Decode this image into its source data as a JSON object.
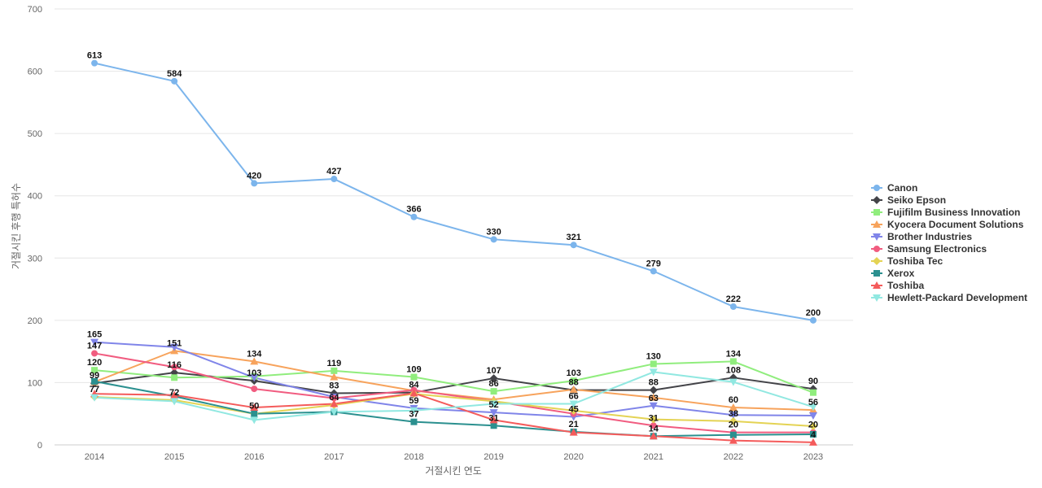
{
  "chart_data": {
    "type": "line",
    "title": "",
    "xlabel": "거절시킨 연도",
    "ylabel": "거절시킨 후행 특허수",
    "ylim": [
      0,
      700
    ],
    "yticks": [
      0,
      100,
      200,
      300,
      400,
      500,
      600,
      700
    ],
    "grid": true,
    "legend_position": "right",
    "categories": [
      "2014",
      "2015",
      "2016",
      "2017",
      "2018",
      "2019",
      "2020",
      "2021",
      "2022",
      "2023"
    ],
    "series": [
      {
        "name": "Canon",
        "color": "#7cb5ec",
        "marker": "circle",
        "values": [
          613,
          584,
          420,
          427,
          366,
          330,
          321,
          279,
          222,
          200
        ],
        "labeled": true
      },
      {
        "name": "Seiko Epson",
        "color": "#434348",
        "marker": "diamond",
        "values": [
          99,
          116,
          103,
          83,
          84,
          107,
          88,
          88,
          108,
          90
        ],
        "labeled": true
      },
      {
        "name": "Fujifilm Business Innovation",
        "color": "#90ed7d",
        "marker": "square",
        "values": [
          120,
          108,
          110,
          119,
          109,
          86,
          103,
          130,
          134,
          84
        ],
        "labeled": true
      },
      {
        "name": "Kyocera Document Solutions",
        "color": "#f7a35c",
        "marker": "triangle",
        "values": [
          101,
          151,
          134,
          109,
          87,
          73,
          89,
          76,
          60,
          56
        ],
        "labeled": true
      },
      {
        "name": "Brother Industries",
        "color": "#8085e9",
        "marker": "triangle-down",
        "values": [
          165,
          157,
          108,
          77,
          59,
          52,
          45,
          63,
          48,
          47
        ],
        "labeled": true
      },
      {
        "name": "Samsung Electronics",
        "color": "#f15c80",
        "marker": "circle",
        "values": [
          147,
          125,
          90,
          75,
          88,
          70,
          50,
          31,
          20,
          20
        ],
        "labeled": true
      },
      {
        "name": "Toshiba Tec",
        "color": "#e4d354",
        "marker": "diamond",
        "values": [
          77,
          72,
          50,
          64,
          82,
          70,
          55,
          41,
          38,
          30
        ],
        "labeled": false
      },
      {
        "name": "Xerox",
        "color": "#2b908f",
        "marker": "square",
        "values": [
          102,
          78,
          50,
          53,
          37,
          31,
          21,
          14,
          16,
          17
        ],
        "labeled": false
      },
      {
        "name": "Toshiba",
        "color": "#f45b5b",
        "marker": "triangle",
        "values": [
          82,
          80,
          60,
          66,
          83,
          40,
          20,
          14,
          7,
          4
        ],
        "labeled": false
      },
      {
        "name": "Hewlett-Packard Development",
        "color": "#91e8e1",
        "marker": "triangle-down",
        "values": [
          76,
          70,
          40,
          53,
          55,
          66,
          66,
          117,
          101,
          61
        ],
        "labeled": false
      }
    ],
    "data_labels": [
      {
        "x": "2014",
        "y": 613,
        "text": "613"
      },
      {
        "x": "2015",
        "y": 584,
        "text": "584"
      },
      {
        "x": "2016",
        "y": 420,
        "text": "420"
      },
      {
        "x": "2017",
        "y": 427,
        "text": "427"
      },
      {
        "x": "2018",
        "y": 366,
        "text": "366"
      },
      {
        "x": "2019",
        "y": 330,
        "text": "330"
      },
      {
        "x": "2020",
        "y": 321,
        "text": "321"
      },
      {
        "x": "2021",
        "y": 279,
        "text": "279"
      },
      {
        "x": "2022",
        "y": 222,
        "text": "222"
      },
      {
        "x": "2023",
        "y": 200,
        "text": "200"
      },
      {
        "x": "2014",
        "y": 165,
        "text": "165"
      },
      {
        "x": "2014",
        "y": 147,
        "text": "147"
      },
      {
        "x": "2014",
        "y": 120,
        "text": "120"
      },
      {
        "x": "2014",
        "y": 99,
        "text": "99"
      },
      {
        "x": "2014",
        "y": 77,
        "text": "77"
      },
      {
        "x": "2015",
        "y": 151,
        "text": "151"
      },
      {
        "x": "2015",
        "y": 116,
        "text": "116"
      },
      {
        "x": "2015",
        "y": 72,
        "text": "72"
      },
      {
        "x": "2016",
        "y": 134,
        "text": "134"
      },
      {
        "x": "2016",
        "y": 103,
        "text": "103"
      },
      {
        "x": "2016",
        "y": 50,
        "text": "50"
      },
      {
        "x": "2017",
        "y": 119,
        "text": "119"
      },
      {
        "x": "2017",
        "y": 83,
        "text": "83"
      },
      {
        "x": "2017",
        "y": 64,
        "text": "64"
      },
      {
        "x": "2018",
        "y": 109,
        "text": "109"
      },
      {
        "x": "2018",
        "y": 84,
        "text": "84"
      },
      {
        "x": "2018",
        "y": 59,
        "text": "59"
      },
      {
        "x": "2018",
        "y": 37,
        "text": "37"
      },
      {
        "x": "2019",
        "y": 107,
        "text": "107"
      },
      {
        "x": "2019",
        "y": 86,
        "text": "86"
      },
      {
        "x": "2019",
        "y": 52,
        "text": "52"
      },
      {
        "x": "2019",
        "y": 31,
        "text": "31"
      },
      {
        "x": "2020",
        "y": 103,
        "text": "103"
      },
      {
        "x": "2020",
        "y": 88,
        "text": "88"
      },
      {
        "x": "2020",
        "y": 66,
        "text": "66"
      },
      {
        "x": "2020",
        "y": 45,
        "text": "45"
      },
      {
        "x": "2020",
        "y": 21,
        "text": "21"
      },
      {
        "x": "2021",
        "y": 130,
        "text": "130"
      },
      {
        "x": "2021",
        "y": 88,
        "text": "88"
      },
      {
        "x": "2021",
        "y": 63,
        "text": "63"
      },
      {
        "x": "2021",
        "y": 31,
        "text": "31"
      },
      {
        "x": "2021",
        "y": 14,
        "text": "14"
      },
      {
        "x": "2022",
        "y": 134,
        "text": "134"
      },
      {
        "x": "2022",
        "y": 108,
        "text": "108"
      },
      {
        "x": "2022",
        "y": 60,
        "text": "60"
      },
      {
        "x": "2022",
        "y": 38,
        "text": "38"
      },
      {
        "x": "2022",
        "y": 20,
        "text": "20"
      },
      {
        "x": "2023",
        "y": 90,
        "text": "90"
      },
      {
        "x": "2023",
        "y": 56,
        "text": "56"
      },
      {
        "x": "2023",
        "y": 20,
        "text": "20"
      },
      {
        "x": "2023",
        "y": 4,
        "text": "4"
      }
    ]
  }
}
